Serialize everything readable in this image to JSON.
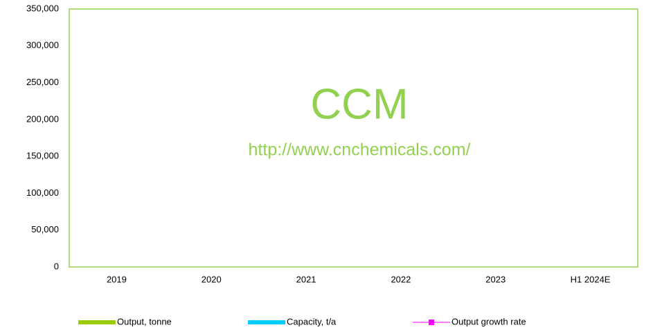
{
  "chart_data": {
    "type": "bar",
    "annotations": [
      "CCM",
      "http://www.cnchemicals.com/"
    ],
    "categories": [
      "2019",
      "2020",
      "2021",
      "2022",
      "2023",
      "H1 2024E"
    ],
    "series": [
      {
        "name": "Output, tonne",
        "color": "#99cc00",
        "type": "bar",
        "values": [
          null,
          null,
          null,
          null,
          null,
          null
        ]
      },
      {
        "name": "Capacity, t/a",
        "color": "#00ccff",
        "type": "bar",
        "values": [
          null,
          null,
          null,
          null,
          null,
          null
        ]
      },
      {
        "name": "Output growth rate",
        "color": "#ff00ff",
        "type": "line",
        "values": [
          null,
          null,
          null,
          null,
          null,
          null
        ]
      }
    ],
    "ylim": [
      0,
      350000
    ],
    "yticks": [
      0,
      {
        "value": 50000,
        "label": "50,000"
      },
      {
        "value": 100000,
        "label": "100,000"
      },
      {
        "value": 150000,
        "label": "150,000"
      },
      {
        "value": 200000,
        "label": "200,000"
      },
      {
        "value": 250000,
        "label": "250,000"
      },
      {
        "value": 300000,
        "label": "300,000"
      },
      {
        "value": 350000,
        "label": "350,000"
      }
    ],
    "grid": false
  }
}
